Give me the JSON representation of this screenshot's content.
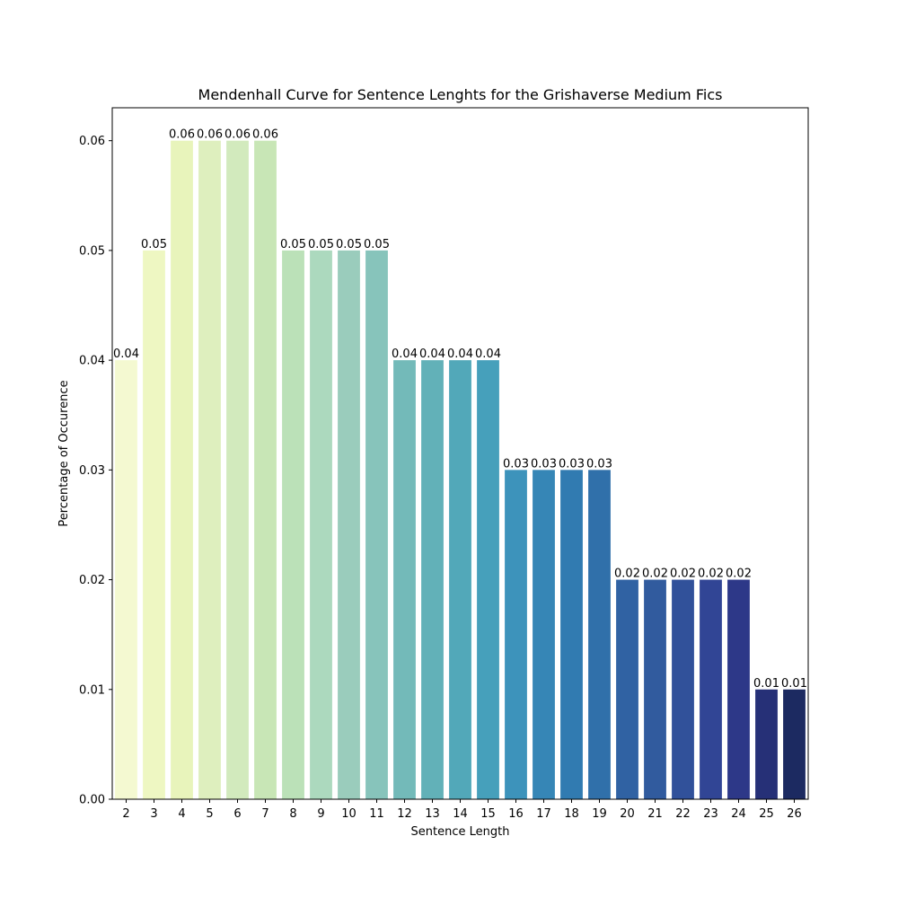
{
  "chart_data": {
    "type": "bar",
    "title": "Mendenhall Curve for Sentence Lenghts for the Grishaverse Medium Fics",
    "xlabel": "Sentence Length",
    "ylabel": "Percentage of Occurence",
    "categories": [
      "2",
      "3",
      "4",
      "5",
      "6",
      "7",
      "8",
      "9",
      "10",
      "11",
      "12",
      "13",
      "14",
      "15",
      "16",
      "17",
      "18",
      "19",
      "20",
      "21",
      "22",
      "23",
      "24",
      "25",
      "26"
    ],
    "values": [
      0.04,
      0.05,
      0.06,
      0.06,
      0.06,
      0.06,
      0.05,
      0.05,
      0.05,
      0.05,
      0.04,
      0.04,
      0.04,
      0.04,
      0.03,
      0.03,
      0.03,
      0.03,
      0.02,
      0.02,
      0.02,
      0.02,
      0.02,
      0.01,
      0.01
    ],
    "value_labels": [
      "0.04",
      "0.05",
      "0.06",
      "0.06",
      "0.06",
      "0.06",
      "0.05",
      "0.05",
      "0.05",
      "0.05",
      "0.04",
      "0.04",
      "0.04",
      "0.04",
      "0.03",
      "0.03",
      "0.03",
      "0.03",
      "0.02",
      "0.02",
      "0.02",
      "0.02",
      "0.02",
      "0.01",
      "0.01"
    ],
    "colors": [
      "#f4f9d1",
      "#eef7c2",
      "#e8f4bb",
      "#deefbe",
      "#d2eabd",
      "#c8e6b6",
      "#bbe1b8",
      "#acd9be",
      "#9accbc",
      "#87c4bb",
      "#73bab9",
      "#62b1b8",
      "#52a8b9",
      "#46a0bb",
      "#3d93bb",
      "#3686b6",
      "#317bb1",
      "#3070aa",
      "#3062a3",
      "#315b9e",
      "#31519a",
      "#314595",
      "#2d3888",
      "#263077",
      "#1c2a61"
    ],
    "yticks": [
      0.0,
      0.01,
      0.02,
      0.03,
      0.04,
      0.05,
      0.06
    ],
    "ytick_labels": [
      "0.00",
      "0.01",
      "0.02",
      "0.03",
      "0.04",
      "0.05",
      "0.06"
    ],
    "ylim": [
      0,
      0.063
    ],
    "grid": false,
    "legend": "none"
  }
}
